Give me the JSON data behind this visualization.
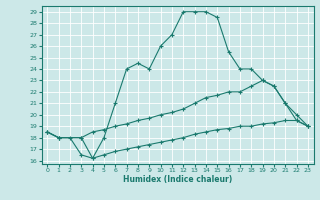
{
  "xlabel": "Humidex (Indice chaleur)",
  "bg_color": "#cce8e8",
  "grid_color": "#ffffff",
  "line_color": "#1a7a6e",
  "xlim": [
    -0.5,
    23.5
  ],
  "ylim": [
    15.7,
    29.5
  ],
  "xticks": [
    0,
    1,
    2,
    3,
    4,
    5,
    6,
    7,
    8,
    9,
    10,
    11,
    12,
    13,
    14,
    15,
    16,
    17,
    18,
    19,
    20,
    21,
    22,
    23
  ],
  "yticks": [
    16,
    17,
    18,
    19,
    20,
    21,
    22,
    23,
    24,
    25,
    26,
    27,
    28,
    29
  ],
  "line1_x": [
    0,
    1,
    2,
    3,
    4,
    5,
    6,
    7,
    8,
    9,
    10,
    11,
    12,
    13,
    14,
    15,
    16,
    17,
    18,
    19,
    20,
    21,
    22,
    23
  ],
  "line1_y": [
    18.5,
    18.0,
    18.0,
    16.5,
    16.2,
    18.0,
    21.0,
    24.0,
    24.5,
    24.0,
    26.0,
    27.0,
    29.0,
    29.0,
    29.0,
    28.5,
    25.5,
    24.0,
    24.0,
    23.0,
    22.5,
    21.0,
    19.5,
    19.0
  ],
  "line2_x": [
    0,
    1,
    3,
    4,
    5,
    6,
    7,
    8,
    9,
    10,
    11,
    12,
    13,
    14,
    15,
    16,
    17,
    18,
    19,
    20,
    21,
    22,
    23
  ],
  "line2_y": [
    18.5,
    18.0,
    18.0,
    18.5,
    18.7,
    19.0,
    19.2,
    19.5,
    19.7,
    20.0,
    20.2,
    20.5,
    21.0,
    21.5,
    21.7,
    22.0,
    22.0,
    22.5,
    23.0,
    22.5,
    21.0,
    20.0,
    19.0
  ],
  "line3_x": [
    0,
    1,
    3,
    4,
    5,
    6,
    7,
    8,
    9,
    10,
    11,
    12,
    13,
    14,
    15,
    16,
    17,
    18,
    19,
    20,
    21,
    22,
    23
  ],
  "line3_y": [
    18.5,
    18.0,
    18.0,
    16.2,
    16.5,
    16.8,
    17.0,
    17.2,
    17.4,
    17.6,
    17.8,
    18.0,
    18.3,
    18.5,
    18.7,
    18.8,
    19.0,
    19.0,
    19.2,
    19.3,
    19.5,
    19.5,
    19.0
  ]
}
